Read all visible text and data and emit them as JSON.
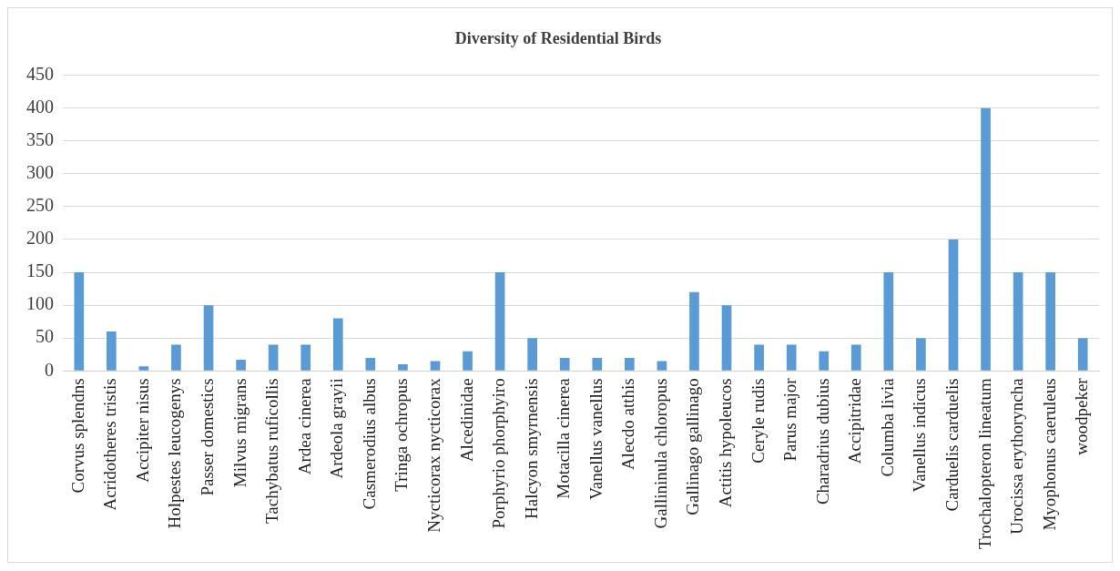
{
  "chart_data": {
    "type": "bar",
    "title": "Diversity of Residential Birds",
    "categories": [
      "Corvus splendns",
      "Acridotheres tristis",
      "Accipiter nisus",
      "Holpestes leucogenys",
      "Passer domestics",
      "Milvus migrans",
      "Tachybatus ruficollis",
      "Ardea cinerea",
      "Ardeola grayii",
      "Casmerodius albus",
      "Tringa ochropus",
      "Nycticorax nycticorax",
      "Alcedinidae",
      "Porphyrio phorphyiro",
      "Halcyon smyrnensis",
      "Motacilla cinerea",
      "Vanellus vanellus",
      "Alecdo atthis",
      "Gallininula chloropus",
      "Gallinago gallinago",
      "Actitis hypoleucos",
      "Ceryle rudis",
      "Parus major",
      "Charadrius dubius",
      "Accipitridae",
      "Columba livia",
      "Vanellus indicus",
      "Carduelis carduelis",
      "Trochalopteron lineatum",
      "Urocissa erythoryncha",
      "Myophonus caeruleus",
      "woodpeker"
    ],
    "values": [
      150,
      60,
      7,
      40,
      100,
      17,
      40,
      40,
      80,
      20,
      10,
      15,
      30,
      150,
      50,
      20,
      20,
      20,
      15,
      120,
      100,
      40,
      40,
      30,
      40,
      150,
      50,
      200,
      400,
      150,
      150,
      50
    ],
    "color": "#5b9bd5",
    "ylim": [
      0,
      450
    ],
    "yticks": [
      0,
      50,
      100,
      150,
      200,
      250,
      300,
      350,
      400,
      450
    ],
    "grid": "y",
    "legend": false
  }
}
